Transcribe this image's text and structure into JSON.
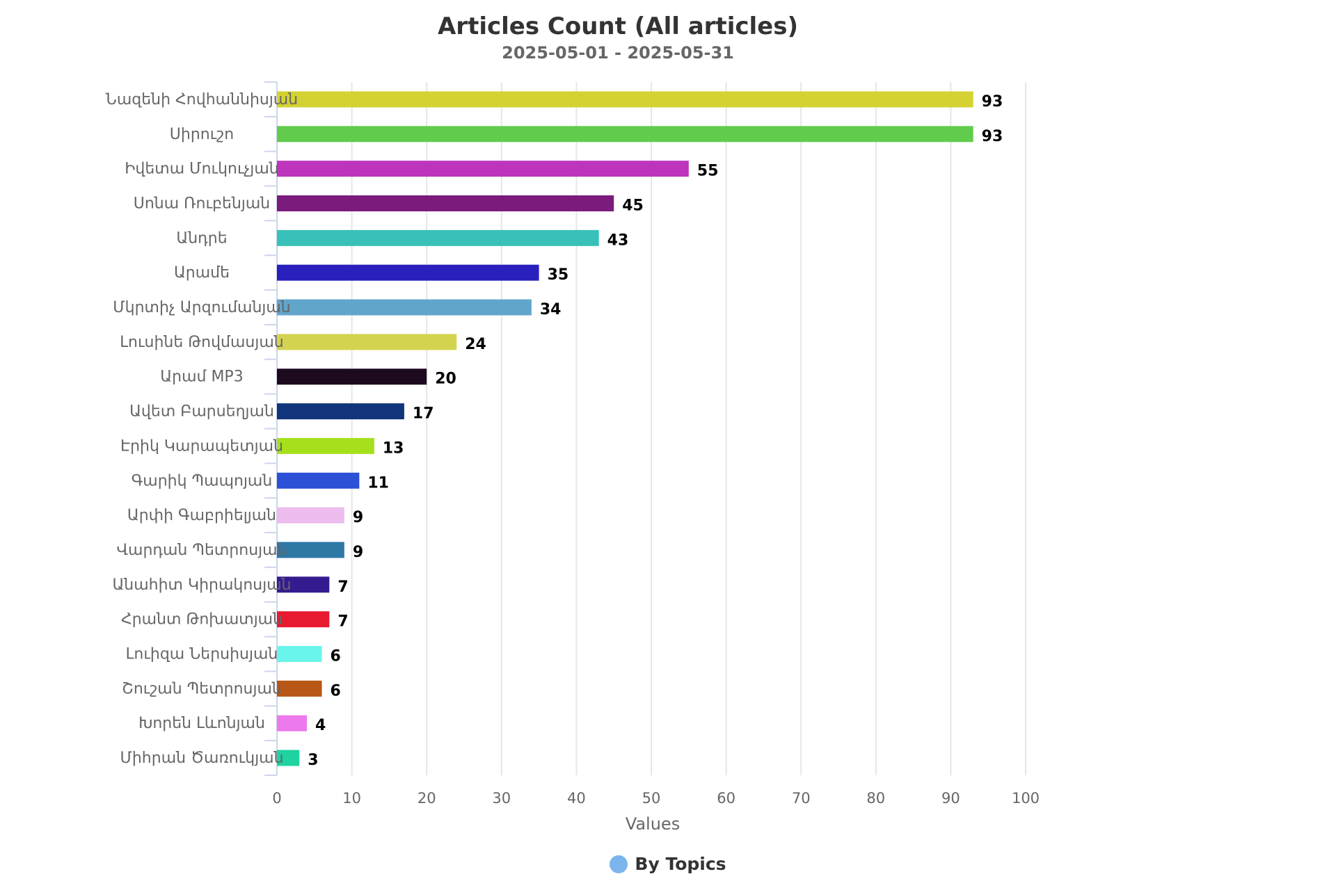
{
  "chart_data": {
    "type": "bar",
    "orientation": "horizontal",
    "title": "Articles Count (All articles)",
    "subtitle": "2025-05-01 - 2025-05-31",
    "xlabel": "Values",
    "ylabel": "",
    "xlim": [
      0,
      100
    ],
    "xticks": [
      0,
      10,
      20,
      30,
      40,
      50,
      60,
      70,
      80,
      90,
      100
    ],
    "grid": true,
    "legend_position": "bottom-center",
    "categories": [
      "Նազենի Հովհաննիսյան",
      "Սիրուշո",
      "Իվետա Մուկուչյան",
      "Սոնա Ռուբենյան",
      "Անդրե",
      "Արամե",
      "Մկրտիչ Արզումանյան",
      "Լուսինե Թովմասյան",
      "Արամ MP3",
      "Ավետ Բարսեղյան",
      "Էրիկ Կարապետյան",
      "Գարիկ Պապոյան",
      "Արփի Գաբրիելյան",
      "Վարդան Պետրոսյան",
      "Անահիտ Կիրակոսյան",
      "Հրանտ Թոխատյան",
      "Լուիզա Ներսիսյան",
      "Շուշան Պետրոսյան",
      "Խորեն Լևոնյան",
      "Միհրան Ծառուկյան"
    ],
    "series": [
      {
        "name": "By Topics",
        "values": [
          93,
          93,
          55,
          45,
          43,
          35,
          34,
          24,
          20,
          17,
          13,
          11,
          9,
          9,
          7,
          7,
          6,
          6,
          4,
          3
        ],
        "colors": [
          "#d4d232",
          "#61cc4c",
          "#bd35bd",
          "#7b1b7b",
          "#38c1b8",
          "#2a20bd",
          "#62a5cb",
          "#d4d350",
          "#1e0a1e",
          "#10357a",
          "#a6e01d",
          "#2c50d6",
          "#ecbcec",
          "#2e78a6",
          "#341b8f",
          "#e81a30",
          "#6af5ec",
          "#b85716",
          "#ec7aec",
          "#1ed3a0"
        ]
      }
    ],
    "legend": [
      {
        "label": "By Topics",
        "color": "#7cb5ec"
      }
    ]
  }
}
